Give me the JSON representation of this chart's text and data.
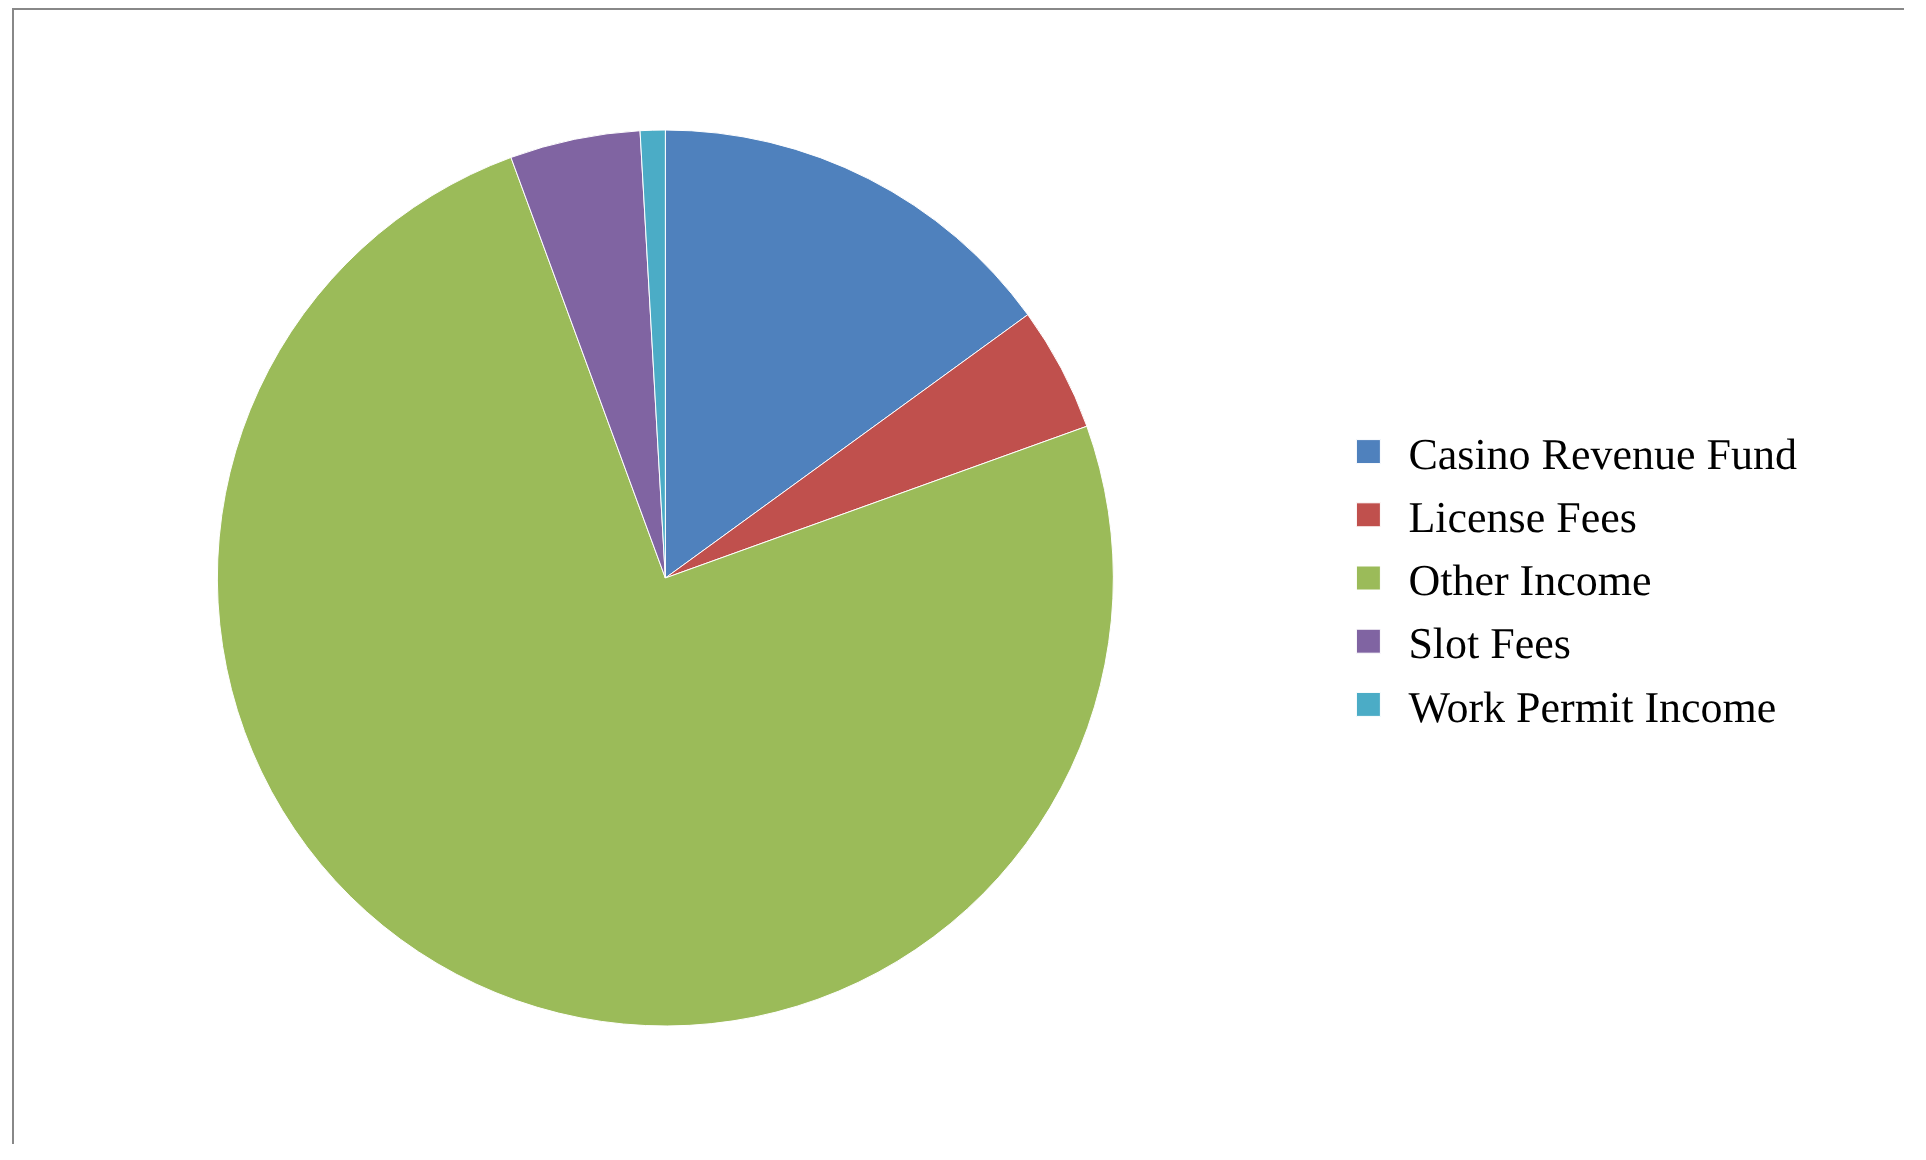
{
  "chart_data": {
    "type": "pie",
    "categories": [
      "Casino Revenue Fund",
      "License Fees",
      "Other Income",
      "Slot Fees",
      "Work Permit Income"
    ],
    "values": [
      15,
      4.5,
      74.9,
      4.7,
      0.9
    ],
    "colors": [
      "#4f81bd",
      "#c0504d",
      "#9bbb59",
      "#8064a2",
      "#4bacc6"
    ],
    "legend": "right"
  }
}
